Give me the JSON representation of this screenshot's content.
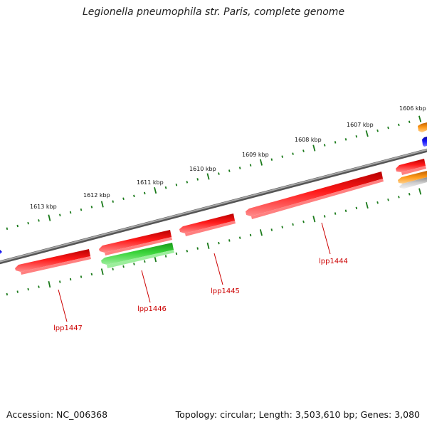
{
  "title": "Legionella pneumophila str. Paris, complete genome",
  "footer": {
    "accession": "Accession: NC_006368",
    "summary": "Topology: circular; Length: 3,503,610 bp; Genes: 3,080"
  },
  "colors": {
    "backbone": "#7a7a7a",
    "tick": "#1a7a1a",
    "gene_red": "#ee1111",
    "gene_green": "#33cc33",
    "gene_blue": "#1111ee",
    "gene_orange": "#f08c00",
    "gene_gray": "#bbbbbb",
    "label": "#cc0000"
  },
  "ruler": {
    "labels": [
      "1606 kbp",
      "1607 kbp",
      "1608 kbp",
      "1609 kbp",
      "1610 kbp",
      "1611 kbp",
      "1612 kbp",
      "1613 kbp"
    ]
  },
  "genes": [
    {
      "label": "lpp1444",
      "color": "red",
      "strand": "reverse"
    },
    {
      "label": "lpp1445",
      "color": "red",
      "strand": "reverse"
    },
    {
      "label": "lpp1446",
      "color": "green",
      "strand": "reverse"
    },
    {
      "label": "lpp1447",
      "color": "red",
      "strand": "reverse"
    }
  ]
}
